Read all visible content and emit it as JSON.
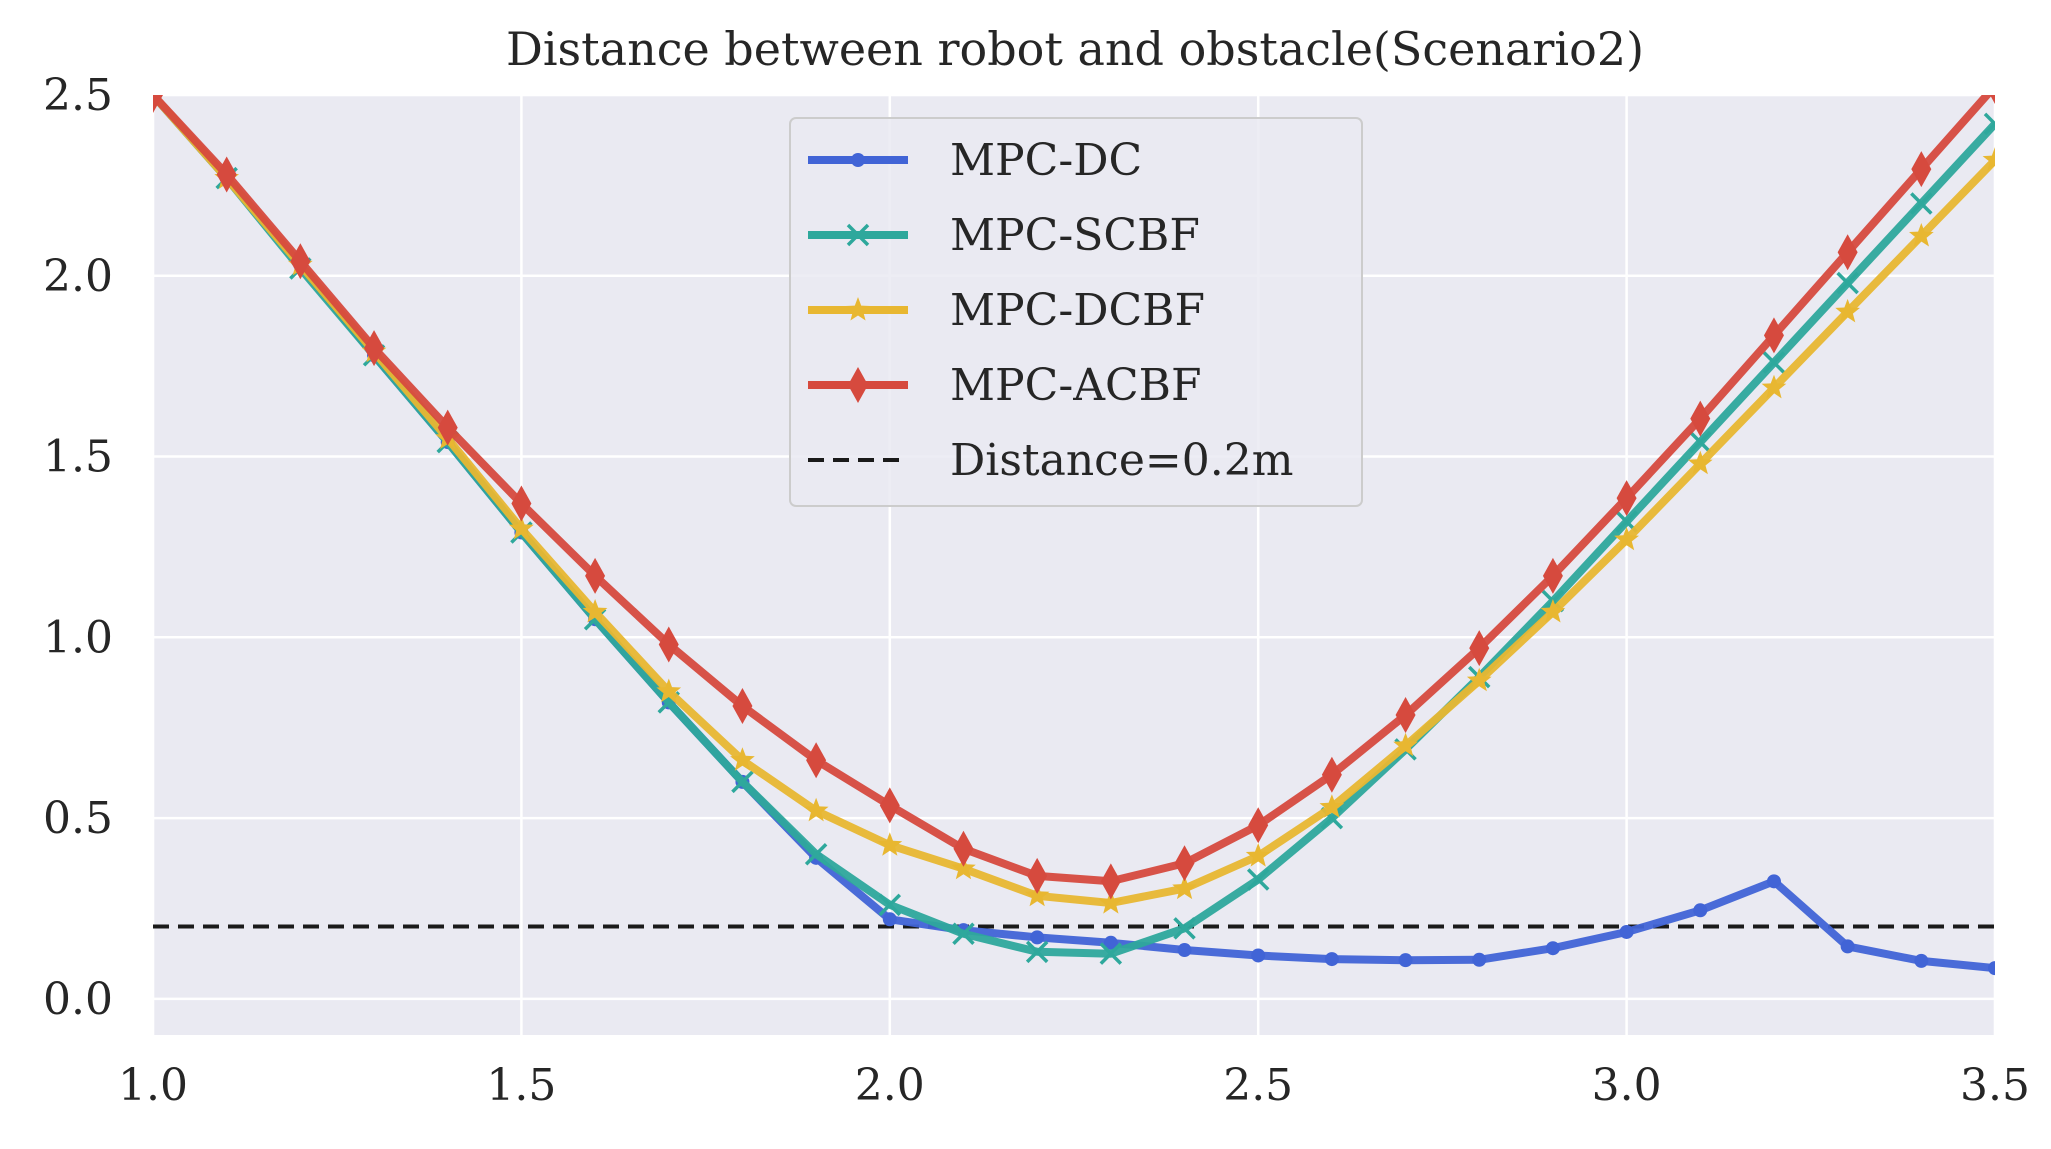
{
  "chart_data": {
    "type": "line",
    "title": "Distance between robot and obstacle(Scenario2)",
    "xlabel": "",
    "ylabel": "",
    "xlim": [
      1.0,
      3.5
    ],
    "ylim": [
      -0.1,
      2.5
    ],
    "xticks": [
      1.0,
      1.5,
      2.0,
      2.5,
      3.0,
      3.5
    ],
    "xtick_labels": [
      "1.0",
      "1.5",
      "2.0",
      "2.5",
      "3.0",
      "3.5"
    ],
    "yticks": [
      0.0,
      0.5,
      1.0,
      1.5,
      2.0,
      2.5
    ],
    "ytick_labels": [
      "0.0",
      "0.5",
      "1.0",
      "1.5",
      "2.0",
      "2.5"
    ],
    "grid": true,
    "legend_position": "top-center",
    "background_color": "#eaeaf2",
    "grid_color": "#ffffff",
    "x": [
      1.0,
      1.1,
      1.2,
      1.3,
      1.4,
      1.5,
      1.6,
      1.7,
      1.8,
      1.9,
      2.0,
      2.1,
      2.2,
      2.3,
      2.4,
      2.5,
      2.6,
      2.7,
      2.8,
      2.9,
      3.0,
      3.1,
      3.2,
      3.3,
      3.4,
      3.5
    ],
    "series": [
      {
        "name": "MPC-DC",
        "color": "#4164d6",
        "marker": "dot",
        "values": [
          2.5,
          2.27,
          2.03,
          1.78,
          1.54,
          1.29,
          1.05,
          0.82,
          0.6,
          0.39,
          0.22,
          0.19,
          0.17,
          0.155,
          0.135,
          0.12,
          0.11,
          0.107,
          0.108,
          0.14,
          0.185,
          0.245,
          0.325,
          0.145,
          0.105,
          0.085
        ]
      },
      {
        "name": "MPC-SCBF",
        "color": "#2ea89c",
        "marker": "x",
        "values": [
          2.5,
          2.27,
          2.02,
          1.78,
          1.54,
          1.29,
          1.05,
          0.82,
          0.6,
          0.4,
          0.26,
          0.18,
          0.13,
          0.125,
          0.195,
          0.33,
          0.5,
          0.69,
          0.89,
          1.1,
          1.32,
          1.54,
          1.76,
          1.98,
          2.2,
          2.42
        ]
      },
      {
        "name": "MPC-DCBF",
        "color": "#e8b731",
        "marker": "star",
        "values": [
          2.5,
          2.27,
          2.03,
          1.79,
          1.55,
          1.3,
          1.07,
          0.85,
          0.66,
          0.52,
          0.425,
          0.36,
          0.285,
          0.265,
          0.305,
          0.395,
          0.53,
          0.7,
          0.88,
          1.07,
          1.27,
          1.48,
          1.69,
          1.9,
          2.11,
          2.32
        ]
      },
      {
        "name": "MPC-ACBF",
        "color": "#d64a3e",
        "marker": "diamond",
        "values": [
          2.5,
          2.28,
          2.04,
          1.8,
          1.58,
          1.37,
          1.17,
          0.98,
          0.81,
          0.66,
          0.535,
          0.415,
          0.34,
          0.325,
          0.375,
          0.48,
          0.62,
          0.785,
          0.97,
          1.17,
          1.385,
          1.605,
          1.835,
          2.065,
          2.295,
          2.525
        ]
      }
    ],
    "reference_line": {
      "name": "Distance=0.2m",
      "y": 0.2,
      "color": "#1a1a1a",
      "style": "dashed"
    }
  }
}
